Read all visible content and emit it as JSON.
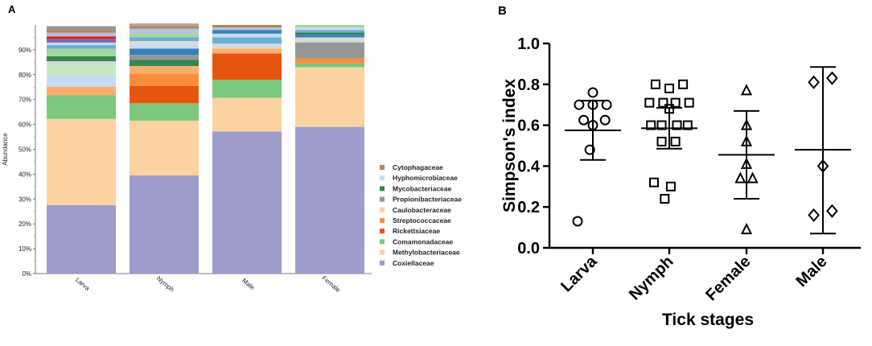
{
  "panels": {
    "a": "A",
    "b": "B"
  },
  "palette": [
    "#9e9ccb",
    "#fcd2a0",
    "#7bc87e",
    "#e6550d",
    "#fd8d3c",
    "#fdae6b",
    "#969696",
    "#31874f",
    "#c6dbef",
    "#b4855a",
    "#c7e9c0",
    "#3182bd",
    "#6baed6",
    "#756bb1",
    "#e41a1c",
    "#bcbddc",
    "#d9d9d9",
    "#a1d99b",
    "#9ecae1",
    "#c49c94"
  ],
  "chart_data": [
    {
      "type": "bar",
      "stacked": true,
      "ylabel": "Abundance",
      "ylim": [
        0,
        100
      ],
      "yticks": [
        "0%",
        "10%",
        "20%",
        "30%",
        "40%",
        "50%",
        "60%",
        "70%",
        "80%",
        "90%"
      ],
      "categories": [
        "Larva",
        "Nymph",
        "Male",
        "Female"
      ],
      "legend": [
        "Cytophagaceae",
        "Hyphomicrobiaceae",
        "Mycobacteriaceae",
        "Propionibacteriaceae",
        "Caulobacteraceae",
        "Streptococcaceae",
        "Rickettsiaceae",
        "Comamonadaceae",
        "Methylobacteriaceae",
        "Coxiellaceae"
      ],
      "legend_colors": [
        "#b4855a",
        "#c6dbef",
        "#31874f",
        "#969696",
        "#fcd2a0",
        "#fd8d3c",
        "#e6550d",
        "#7bc87e",
        "#fcd2a0",
        "#9e9ccb"
      ],
      "stacks": [
        [
          {
            "v": 27.5,
            "c": 0
          },
          {
            "v": 34.7,
            "c": 1
          },
          {
            "v": 9.5,
            "c": 2
          },
          {
            "v": 3.5,
            "c": 5
          },
          {
            "v": 4.5,
            "c": 8
          },
          {
            "v": 4.2,
            "c": 10
          },
          {
            "v": 1.5,
            "c": 16
          },
          {
            "v": 2.0,
            "c": 7
          },
          {
            "v": 3.0,
            "c": 17
          },
          {
            "v": 1.5,
            "c": 12
          },
          {
            "v": 1.0,
            "c": 8
          },
          {
            "v": 1.5,
            "c": 13
          },
          {
            "v": 1.0,
            "c": 14
          },
          {
            "v": 1.5,
            "c": 15
          },
          {
            "v": 1.0,
            "c": 9
          },
          {
            "v": 1.6,
            "c": 6
          }
        ],
        [
          {
            "v": 39.5,
            "c": 0
          },
          {
            "v": 22.0,
            "c": 1
          },
          {
            "v": 7.0,
            "c": 2
          },
          {
            "v": 7.0,
            "c": 3
          },
          {
            "v": 5.0,
            "c": 4
          },
          {
            "v": 3.0,
            "c": 5
          },
          {
            "v": 2.5,
            "c": 7
          },
          {
            "v": 2.0,
            "c": 6
          },
          {
            "v": 2.5,
            "c": 11
          },
          {
            "v": 1.5,
            "c": 8
          },
          {
            "v": 1.5,
            "c": 16
          },
          {
            "v": 1.5,
            "c": 12
          },
          {
            "v": 1.5,
            "c": 17
          },
          {
            "v": 1.0,
            "c": 15
          },
          {
            "v": 1.0,
            "c": 18
          },
          {
            "v": 1.0,
            "c": 9
          },
          {
            "v": 1.1,
            "c": 19
          }
        ],
        [
          {
            "v": 57.2,
            "c": 0
          },
          {
            "v": 13.5,
            "c": 1
          },
          {
            "v": 7.3,
            "c": 2
          },
          {
            "v": 10.5,
            "c": 3
          },
          {
            "v": 2.0,
            "c": 5
          },
          {
            "v": 2.0,
            "c": 16
          },
          {
            "v": 2.5,
            "c": 12
          },
          {
            "v": 1.5,
            "c": 8
          },
          {
            "v": 1.5,
            "c": 11
          },
          {
            "v": 1.0,
            "c": 15
          },
          {
            "v": 1.0,
            "c": 9
          }
        ],
        [
          {
            "v": 59.0,
            "c": 0
          },
          {
            "v": 24.0,
            "c": 1
          },
          {
            "v": 1.5,
            "c": 2
          },
          {
            "v": 2.0,
            "c": 4
          },
          {
            "v": 6.5,
            "c": 6
          },
          {
            "v": 2.0,
            "c": 16
          },
          {
            "v": 1.0,
            "c": 11
          },
          {
            "v": 1.0,
            "c": 7
          },
          {
            "v": 1.0,
            "c": 12
          },
          {
            "v": 1.0,
            "c": 8
          },
          {
            "v": 1.0,
            "c": 17
          }
        ]
      ]
    },
    {
      "type": "scatter",
      "xlabel": "Tick stages",
      "ylabel": "Simpson's index",
      "ylim": [
        0,
        1.0
      ],
      "yticks": [
        "0.0",
        "0.2",
        "0.4",
        "0.6",
        "0.8",
        "1.0"
      ],
      "categories": [
        "Larva",
        "Nymph",
        "Female",
        "Male"
      ],
      "markers": [
        "circle",
        "square",
        "triangle",
        "diamond"
      ],
      "summary": [
        {
          "mean": 0.575,
          "low": 0.43,
          "high": 0.72
        },
        {
          "mean": 0.585,
          "low": 0.485,
          "high": 0.685
        },
        {
          "mean": 0.455,
          "low": 0.24,
          "high": 0.67
        },
        {
          "mean": 0.48,
          "low": 0.07,
          "high": 0.885
        }
      ],
      "points": [
        [
          {
            "o": -0.45,
            "y": 0.7
          },
          {
            "o": 0.0,
            "y": 0.7
          },
          {
            "o": 0.45,
            "y": 0.7
          },
          {
            "o": 0.0,
            "y": 0.76
          },
          {
            "o": -0.3,
            "y": 0.625
          },
          {
            "o": 0.4,
            "y": 0.625
          },
          {
            "o": 0.0,
            "y": 0.6
          },
          {
            "o": -0.1,
            "y": 0.48
          },
          {
            "o": -0.5,
            "y": 0.13
          }
        ],
        [
          {
            "o": -0.45,
            "y": 0.8
          },
          {
            "o": 0.0,
            "y": 0.78
          },
          {
            "o": 0.45,
            "y": 0.8
          },
          {
            "o": -0.65,
            "y": 0.71
          },
          {
            "o": -0.2,
            "y": 0.71
          },
          {
            "o": 0.2,
            "y": 0.71
          },
          {
            "o": 0.65,
            "y": 0.71
          },
          {
            "o": 0.0,
            "y": 0.68
          },
          {
            "o": -0.6,
            "y": 0.6
          },
          {
            "o": -0.25,
            "y": 0.6
          },
          {
            "o": 0.25,
            "y": 0.6
          },
          {
            "o": 0.6,
            "y": 0.6
          },
          {
            "o": -0.25,
            "y": 0.52
          },
          {
            "o": 0.2,
            "y": 0.52
          },
          {
            "o": -0.5,
            "y": 0.32
          },
          {
            "o": 0.05,
            "y": 0.3
          },
          {
            "o": -0.15,
            "y": 0.24
          }
        ],
        [
          {
            "o": 0.0,
            "y": 0.77
          },
          {
            "o": 0.0,
            "y": 0.6
          },
          {
            "o": 0.0,
            "y": 0.52
          },
          {
            "o": 0.0,
            "y": 0.41
          },
          {
            "o": -0.2,
            "y": 0.34
          },
          {
            "o": 0.2,
            "y": 0.34
          },
          {
            "o": 0.0,
            "y": 0.09
          }
        ],
        [
          {
            "o": -0.3,
            "y": 0.81
          },
          {
            "o": 0.3,
            "y": 0.83
          },
          {
            "o": 0.0,
            "y": 0.4
          },
          {
            "o": -0.3,
            "y": 0.16
          },
          {
            "o": 0.3,
            "y": 0.18
          }
        ]
      ]
    }
  ]
}
